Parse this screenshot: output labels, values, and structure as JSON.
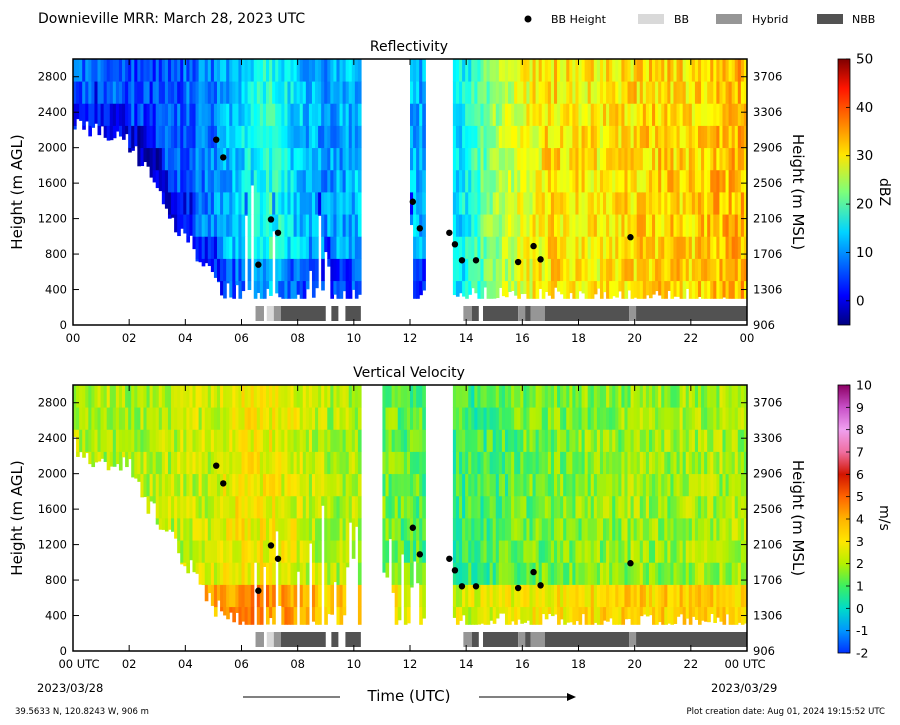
{
  "header": {
    "title": "Downieville MRR:  March 28, 2023 UTC",
    "legend": [
      {
        "label": "BB Height",
        "symbol": "dot",
        "color": "#000000"
      },
      {
        "label": "BB",
        "symbol": "patch",
        "color": "#d9d9d9"
      },
      {
        "label": "Hybrid",
        "symbol": "patch",
        "color": "#969696"
      },
      {
        "label": "NBB",
        "symbol": "patch",
        "color": "#525252"
      }
    ]
  },
  "footer": {
    "location": "39.5633 N, 120.8243 W, 906 m",
    "creation": "Plot creation date: Aug 01, 2024 19:15:52 UTC",
    "time_label": "Time (UTC)",
    "start_tick": "00 UTC",
    "end_tick": "00 UTC",
    "start_date": "2023/03/28",
    "end_date": "2023/03/29"
  },
  "chart_data": [
    {
      "type": "heatmap",
      "title": "Reflectivity",
      "ylabel": "Height (m AGL)",
      "y2label": "Height (m MSL)",
      "xlim": [
        0,
        24
      ],
      "ylim": [
        0,
        3000
      ],
      "xticks": [
        "00",
        "02",
        "04",
        "06",
        "08",
        "10",
        "12",
        "14",
        "16",
        "18",
        "20",
        "22",
        "00"
      ],
      "yticks": [
        0,
        400,
        800,
        1200,
        1600,
        2000,
        2400,
        2800
      ],
      "y2ticks": [
        906,
        1306,
        1706,
        2106,
        2506,
        2906,
        3306,
        3706
      ],
      "colorbar": {
        "label": "dBZ",
        "min": -5,
        "max": 50,
        "ticks": [
          "0",
          "10",
          "20",
          "30",
          "40",
          "50"
        ],
        "tick_values": [
          0,
          10,
          20,
          30,
          40,
          50
        ]
      },
      "echo_base_m": [
        2350,
        2150,
        2050,
        1500,
        1000,
        500,
        300,
        300,
        300,
        300,
        300,
        300,
        300,
        300,
        300,
        300,
        300,
        300,
        300,
        300,
        300,
        300,
        300,
        300
      ],
      "gaps_hr": [
        [
          10.3,
          12.0
        ],
        [
          12.5,
          13.5
        ]
      ],
      "mean_dbz_by_hour": [
        8,
        8,
        6,
        5,
        7,
        9,
        14,
        18,
        13,
        10,
        12,
        14,
        12,
        10,
        16,
        24,
        28,
        31,
        30,
        30,
        31,
        32,
        31,
        33
      ],
      "bb_height": [
        {
          "x": 5.1,
          "y": 2090
        },
        {
          "x": 5.35,
          "y": 1890
        },
        {
          "x": 6.6,
          "y": 680
        },
        {
          "x": 7.05,
          "y": 1190
        },
        {
          "x": 7.3,
          "y": 1040
        },
        {
          "x": 12.1,
          "y": 1390
        },
        {
          "x": 12.35,
          "y": 1090
        },
        {
          "x": 13.4,
          "y": 1040
        },
        {
          "x": 13.6,
          "y": 910
        },
        {
          "x": 13.85,
          "y": 730
        },
        {
          "x": 14.35,
          "y": 730
        },
        {
          "x": 15.85,
          "y": 710
        },
        {
          "x": 16.4,
          "y": 890
        },
        {
          "x": 16.65,
          "y": 740
        },
        {
          "x": 19.85,
          "y": 990
        }
      ],
      "bb_type_segments": [
        {
          "start": 6.5,
          "end": 6.8,
          "type": "Hybrid"
        },
        {
          "start": 6.9,
          "end": 7.15,
          "type": "BB"
        },
        {
          "start": 7.15,
          "end": 7.4,
          "type": "Hybrid"
        },
        {
          "start": 7.4,
          "end": 9.0,
          "type": "NBB"
        },
        {
          "start": 9.2,
          "end": 9.45,
          "type": "NBB"
        },
        {
          "start": 9.7,
          "end": 10.25,
          "type": "NBB"
        },
        {
          "start": 13.9,
          "end": 14.2,
          "type": "Hybrid"
        },
        {
          "start": 14.2,
          "end": 14.45,
          "type": "NBB"
        },
        {
          "start": 14.6,
          "end": 15.85,
          "type": "NBB"
        },
        {
          "start": 15.85,
          "end": 16.1,
          "type": "Hybrid"
        },
        {
          "start": 16.1,
          "end": 16.3,
          "type": "NBB"
        },
        {
          "start": 16.3,
          "end": 16.8,
          "type": "Hybrid"
        },
        {
          "start": 16.8,
          "end": 19.8,
          "type": "NBB"
        },
        {
          "start": 19.8,
          "end": 20.05,
          "type": "Hybrid"
        },
        {
          "start": 20.05,
          "end": 24.0,
          "type": "NBB"
        }
      ]
    },
    {
      "type": "heatmap",
      "title": "Vertical Velocity",
      "ylabel": "Height (m AGL)",
      "y2label": "Height (m MSL)",
      "xlim": [
        0,
        24
      ],
      "ylim": [
        0,
        3000
      ],
      "xticks": [
        "00",
        "02",
        "04",
        "06",
        "08",
        "10",
        "12",
        "14",
        "16",
        "18",
        "20",
        "22",
        "00"
      ],
      "yticks": [
        0,
        400,
        800,
        1200,
        1600,
        2000,
        2400,
        2800
      ],
      "y2ticks": [
        906,
        1306,
        1706,
        2106,
        2506,
        2906,
        3306,
        3706
      ],
      "colorbar": {
        "label": "m/s",
        "min": -2,
        "max": 10,
        "ticks": [
          "-2",
          "-1",
          "0",
          "1",
          "2",
          "3",
          "4",
          "5",
          "6",
          "7",
          "8",
          "9",
          "10"
        ],
        "tick_values": [
          -2,
          -1,
          0,
          1,
          2,
          3,
          4,
          5,
          6,
          7,
          8,
          9,
          10
        ]
      },
      "echo_base_m": [
        2350,
        2150,
        2050,
        1500,
        1000,
        500,
        300,
        300,
        300,
        300,
        300,
        300,
        300,
        300,
        300,
        300,
        300,
        300,
        300,
        300,
        300,
        300,
        300,
        300
      ],
      "gaps_hr": [
        [
          10.3,
          11.0
        ],
        [
          12.5,
          13.5
        ]
      ],
      "mean_velocity_by_hour": [
        2.0,
        2.0,
        2.0,
        2.0,
        2.2,
        2.4,
        3.0,
        2.8,
        2.5,
        2.0,
        2.0,
        1.5,
        1.2,
        1.0,
        0.8,
        1.0,
        1.3,
        1.4,
        1.6,
        1.7,
        1.8,
        1.8,
        1.9,
        1.9
      ],
      "bb_height": [
        {
          "x": 5.1,
          "y": 2090
        },
        {
          "x": 5.35,
          "y": 1890
        },
        {
          "x": 6.6,
          "y": 680
        },
        {
          "x": 7.05,
          "y": 1190
        },
        {
          "x": 7.3,
          "y": 1040
        },
        {
          "x": 12.1,
          "y": 1390
        },
        {
          "x": 12.35,
          "y": 1090
        },
        {
          "x": 13.4,
          "y": 1040
        },
        {
          "x": 13.6,
          "y": 910
        },
        {
          "x": 13.85,
          "y": 730
        },
        {
          "x": 14.35,
          "y": 730
        },
        {
          "x": 15.85,
          "y": 710
        },
        {
          "x": 16.4,
          "y": 890
        },
        {
          "x": 16.65,
          "y": 740
        },
        {
          "x": 19.85,
          "y": 990
        }
      ],
      "bb_type_segments": [
        {
          "start": 6.5,
          "end": 6.8,
          "type": "Hybrid"
        },
        {
          "start": 6.9,
          "end": 7.15,
          "type": "BB"
        },
        {
          "start": 7.15,
          "end": 7.4,
          "type": "Hybrid"
        },
        {
          "start": 7.4,
          "end": 9.0,
          "type": "NBB"
        },
        {
          "start": 9.2,
          "end": 9.45,
          "type": "NBB"
        },
        {
          "start": 9.7,
          "end": 10.25,
          "type": "NBB"
        },
        {
          "start": 13.9,
          "end": 14.2,
          "type": "Hybrid"
        },
        {
          "start": 14.2,
          "end": 14.45,
          "type": "NBB"
        },
        {
          "start": 14.6,
          "end": 15.85,
          "type": "NBB"
        },
        {
          "start": 15.85,
          "end": 16.1,
          "type": "Hybrid"
        },
        {
          "start": 16.1,
          "end": 16.3,
          "type": "NBB"
        },
        {
          "start": 16.3,
          "end": 16.8,
          "type": "Hybrid"
        },
        {
          "start": 16.8,
          "end": 19.8,
          "type": "NBB"
        },
        {
          "start": 19.8,
          "end": 20.05,
          "type": "Hybrid"
        },
        {
          "start": 20.05,
          "end": 24.0,
          "type": "NBB"
        }
      ]
    }
  ]
}
